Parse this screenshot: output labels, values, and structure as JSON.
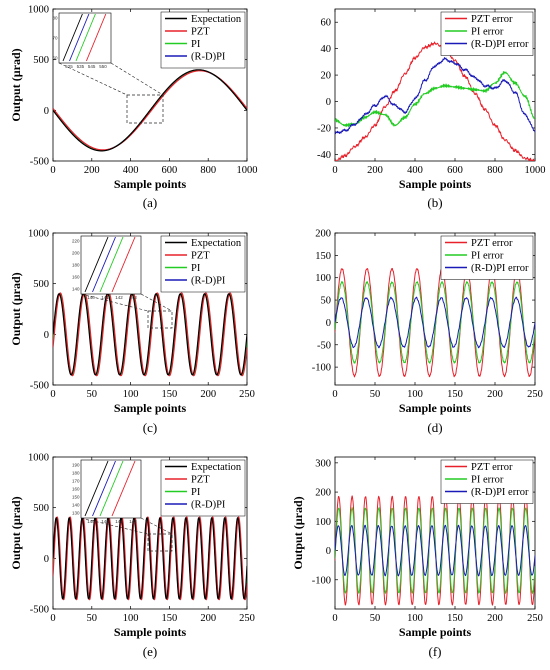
{
  "chart_data": [
    {
      "id": "a",
      "panel_label": "(a)",
      "type": "line",
      "xlabel": "Sample points",
      "ylabel": "Output (µrad)",
      "xlim": [
        0,
        1000
      ],
      "ylim": [
        -500,
        1000
      ],
      "xticks": [
        "0",
        "200",
        "400",
        "600",
        "800",
        "1000"
      ],
      "yticks": [
        "-500",
        "0",
        "500",
        "1000"
      ],
      "amplitude": 400,
      "period": 1000,
      "phase_shift": 0.25,
      "offset": 0,
      "series": [
        {
          "name": "Expectation",
          "color": "#000000",
          "shift": 0,
          "scale": 1.0
        },
        {
          "name": "PZT",
          "color": "#e8202a",
          "shift": 0.0,
          "scale": 1.0,
          "mod": 0.12,
          "modshift": 0.1
        },
        {
          "name": "PI",
          "color": "#22cc22",
          "shift": 0.0,
          "scale": 1.0,
          "mod": 0.03
        },
        {
          "name": "(R-D)PI",
          "color": "#1a1ab8",
          "shift": 0.0,
          "scale": 1.0,
          "mod": 0.06
        }
      ],
      "inset": {
        "xticks": [
          "525",
          "535",
          "545",
          "550"
        ],
        "yticks": [
          "80",
          "70",
          "60"
        ],
        "colors": [
          "#000000",
          "#1a1ab8",
          "#22cc22",
          "#e8202a"
        ]
      }
    },
    {
      "id": "b",
      "panel_label": "(b)",
      "type": "line",
      "xlabel": "Sample points",
      "ylabel": "",
      "xlim": [
        0,
        1000
      ],
      "ylim": [
        -45,
        70
      ],
      "xticks": [
        "0",
        "200",
        "400",
        "600",
        "800",
        "1000"
      ],
      "yticks": [
        "-40",
        "-20",
        "0",
        "20",
        "40",
        "60"
      ],
      "x": [
        0,
        50,
        100,
        150,
        200,
        250,
        300,
        350,
        400,
        450,
        500,
        550,
        600,
        650,
        700,
        750,
        800,
        850,
        900,
        950,
        1000
      ],
      "series": [
        {
          "name": "PZT error",
          "color": "#e8202a",
          "values": [
            -45,
            -41,
            -34,
            -27,
            -18,
            -4,
            8,
            21,
            33,
            41,
            44,
            40,
            31,
            19,
            6,
            -6,
            -18,
            -29,
            -37,
            -43,
            -45
          ]
        },
        {
          "name": "PI error",
          "color": "#22cc22",
          "values": [
            -14,
            -18,
            -17,
            -12,
            -8,
            -10,
            -18,
            -12,
            -2,
            6,
            10,
            12,
            11,
            10,
            9,
            8,
            14,
            22,
            14,
            4,
            -13
          ]
        },
        {
          "name": "(R-D)PI error",
          "color": "#1a1ab8",
          "values": [
            -24,
            -22,
            -17,
            -10,
            -3,
            4,
            -3,
            -8,
            2,
            16,
            27,
            32,
            29,
            24,
            18,
            12,
            10,
            16,
            7,
            -10,
            -22
          ]
        }
      ]
    },
    {
      "id": "c",
      "panel_label": "(c)",
      "type": "line",
      "xlabel": "Sample points",
      "ylabel": "Output (µrad)",
      "xlim": [
        0,
        250
      ],
      "ylim": [
        -500,
        1000
      ],
      "xticks": [
        "0",
        "50",
        "100",
        "150",
        "200",
        "250"
      ],
      "yticks": [
        "-500",
        "0",
        "500",
        "1000"
      ],
      "amplitude": 400,
      "period": 31.25,
      "phase_shift": 0.1,
      "offset": 0,
      "series": [
        {
          "name": "Expectation",
          "color": "#000000",
          "shift": 0,
          "scale": 1.0
        },
        {
          "name": "PZT",
          "color": "#e8202a",
          "shift": 1.6,
          "scale": 1.02
        },
        {
          "name": "PI",
          "color": "#22cc22",
          "shift": 0.8,
          "scale": 1.0
        },
        {
          "name": "(R-D)PI",
          "color": "#1a1ab8",
          "shift": 0.4,
          "scale": 1.0
        }
      ],
      "inset": {
        "xticks": [
          "140",
          "141",
          "142",
          "143"
        ],
        "yticks": [
          "220",
          "200",
          "180",
          "160",
          "140"
        ],
        "colors": [
          "#000000",
          "#1a1ab8",
          "#22cc22",
          "#e8202a"
        ]
      }
    },
    {
      "id": "d",
      "panel_label": "(d)",
      "type": "line",
      "xlabel": "Sample points",
      "ylabel": "",
      "xlim": [
        0,
        250
      ],
      "ylim": [
        -140,
        200
      ],
      "xticks": [
        "0",
        "50",
        "100",
        "150",
        "200",
        "250"
      ],
      "yticks": [
        "-100",
        "-50",
        "0",
        "50",
        "100",
        "150",
        "200"
      ],
      "period": 31.25,
      "series": [
        {
          "name": "PZT error",
          "color": "#e8202a",
          "amplitude": 120,
          "phase": 0.28
        },
        {
          "name": "PI error",
          "color": "#22cc22",
          "amplitude": 90,
          "phase": 0.28
        },
        {
          "name": "(R-D)PI error",
          "color": "#1a1ab8",
          "amplitude": 55,
          "phase": 0.25
        }
      ]
    },
    {
      "id": "e",
      "panel_label": "(e)",
      "type": "line",
      "xlabel": "Sample points",
      "ylabel": "Output (µrad)",
      "xlim": [
        0,
        250
      ],
      "ylim": [
        -500,
        1000
      ],
      "xticks": [
        "0",
        "50",
        "100",
        "150",
        "200",
        "250"
      ],
      "yticks": [
        "-500",
        "0",
        "500",
        "1000"
      ],
      "amplitude": 400,
      "period": 16.7,
      "phase_shift": 0.1,
      "offset": 0,
      "series": [
        {
          "name": "Expectation",
          "color": "#000000",
          "shift": 0,
          "scale": 1.0
        },
        {
          "name": "PZT",
          "color": "#e8202a",
          "shift": 1.2,
          "scale": 1.02
        },
        {
          "name": "PI",
          "color": "#22cc22",
          "shift": 0.6,
          "scale": 1.0
        },
        {
          "name": "(R-D)PI",
          "color": "#1a1ab8",
          "shift": 0.3,
          "scale": 1.0
        }
      ],
      "inset": {
        "xticks": [
          "140",
          "141",
          "142",
          "143"
        ],
        "yticks": [
          "190",
          "180",
          "170",
          "160",
          "150",
          "140",
          "130"
        ],
        "colors": [
          "#000000",
          "#1a1ab8",
          "#22cc22",
          "#e8202a"
        ]
      }
    },
    {
      "id": "f",
      "panel_label": "(f)",
      "type": "line",
      "xlabel": "Sample points",
      "ylabel": "Output (µrad)",
      "xlim": [
        0,
        250
      ],
      "ylim": [
        -200,
        320
      ],
      "xticks": [
        "0",
        "50",
        "100",
        "150",
        "200",
        "250"
      ],
      "yticks": [
        "-100",
        "0",
        "100",
        "200",
        "300"
      ],
      "period": 16.7,
      "series": [
        {
          "name": "PZT error",
          "color": "#e8202a",
          "amplitude": 185,
          "phase": 0.28
        },
        {
          "name": "PI error",
          "color": "#22cc22",
          "amplitude": 145,
          "phase": 0.28
        },
        {
          "name": "(R-D)PI error",
          "color": "#1a1ab8",
          "amplitude": 85,
          "phase": 0.25
        }
      ]
    }
  ]
}
